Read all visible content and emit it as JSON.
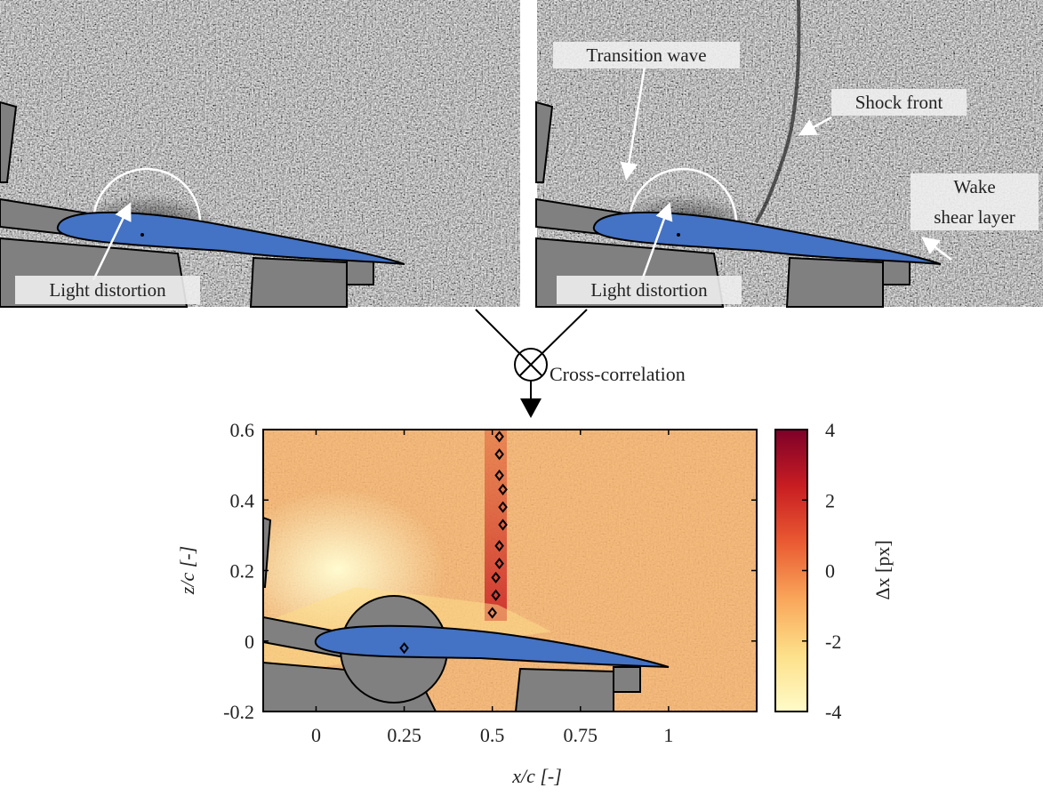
{
  "figure": {
    "left_labels": [
      "Light distortion"
    ],
    "right_labels": [
      "Transition wave",
      "Shock front",
      "Wake",
      "shear layer",
      "Light distortion"
    ],
    "operation": "Cross-correlation"
  },
  "chart_data": {
    "type": "scatter",
    "xlabel": "x/c [-]",
    "ylabel": "z/c [-]",
    "colorbar_label": "Δx [px]",
    "xlim": [
      -0.15,
      1.25
    ],
    "ylim": [
      -0.2,
      0.6
    ],
    "xticks": [
      0,
      0.25,
      0.5,
      0.75,
      1
    ],
    "yticks": [
      -0.2,
      0,
      0.2,
      0.4,
      0.6
    ],
    "clim": [
      -4,
      4
    ],
    "cticks": [
      -4,
      -2,
      0,
      2,
      4
    ],
    "colormap": [
      "#fffbc8",
      "#fde08a",
      "#f9a65a",
      "#ea5a32",
      "#c81d22",
      "#7e0029"
    ],
    "series": [
      {
        "color": "#000000",
        "x": [
          0.52,
          0.52,
          0.52,
          0.53,
          0.53,
          0.53,
          0.52,
          0.52,
          0.51,
          0.51,
          0.5
        ],
        "values": [
          0.58,
          0.53,
          0.47,
          0.43,
          0.38,
          0.33,
          0.27,
          0.22,
          0.18,
          0.13,
          0.08
        ]
      },
      {
        "color": "#000000",
        "x": [
          0.25
        ],
        "values": [
          -0.02
        ]
      }
    ]
  }
}
